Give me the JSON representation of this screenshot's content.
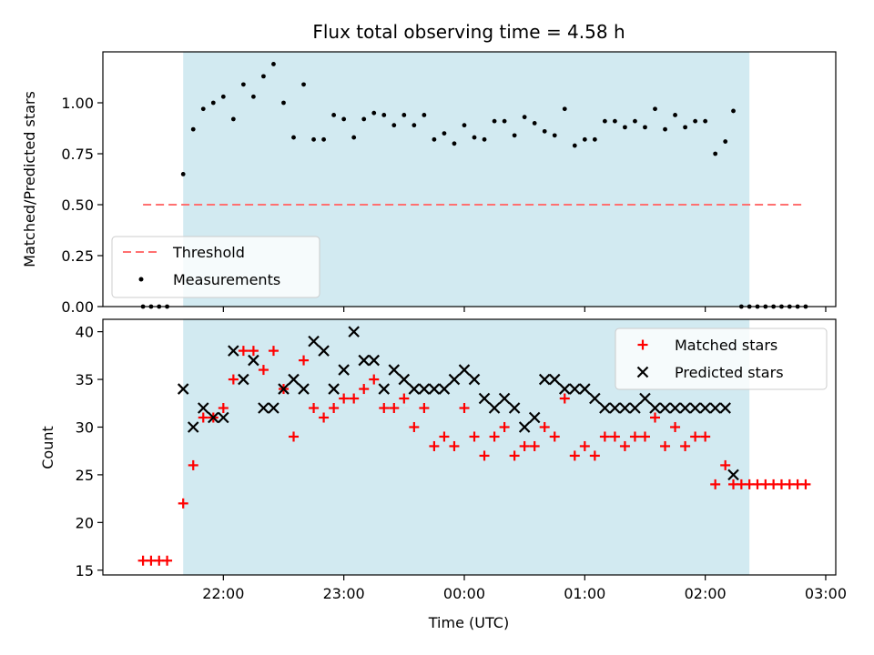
{
  "colors": {
    "shade": "#add8e6",
    "threshold": "#ff7070",
    "measurements": "#000000",
    "matched": "#ff0000",
    "predicted": "#000000"
  },
  "chart_data": [
    {
      "type": "scatter",
      "title": "Flux total observing time = 4.58 h",
      "xlabel": "",
      "ylabel": "Matched/Predicted stars",
      "ylim": [
        0,
        1.25
      ],
      "y_ticks": [
        "0.00",
        "0.25",
        "0.50",
        "0.75",
        "1.00"
      ],
      "y_tick_values": [
        0,
        0.25,
        0.5,
        0.75,
        1.0
      ],
      "legend": {
        "placement": "lower-left",
        "threshold_label": "Threshold",
        "measurements_label": "Measurements"
      },
      "threshold": {
        "value": 0.5,
        "x_range": [
          "21:20",
          "02:50"
        ]
      },
      "shaded_x_range": [
        "21:40",
        "02:22"
      ],
      "x": [
        "21:20",
        "21:24",
        "21:28",
        "21:32",
        "21:40",
        "21:45",
        "21:50",
        "21:55",
        "22:00",
        "22:05",
        "22:10",
        "22:15",
        "22:20",
        "22:25",
        "22:30",
        "22:35",
        "22:40",
        "22:45",
        "22:50",
        "22:55",
        "23:00",
        "23:05",
        "23:10",
        "23:15",
        "23:20",
        "23:25",
        "23:30",
        "23:35",
        "23:40",
        "23:45",
        "23:50",
        "23:55",
        "00:00",
        "00:05",
        "00:10",
        "00:15",
        "00:20",
        "00:25",
        "00:30",
        "00:35",
        "00:40",
        "00:45",
        "00:50",
        "00:55",
        "01:00",
        "01:05",
        "01:10",
        "01:15",
        "01:20",
        "01:25",
        "01:30",
        "01:35",
        "01:40",
        "01:45",
        "01:50",
        "01:55",
        "02:00",
        "02:05",
        "02:10",
        "02:14",
        "02:18",
        "02:22",
        "02:26",
        "02:30",
        "02:34",
        "02:38",
        "02:42",
        "02:46",
        "02:50"
      ],
      "y": [
        0,
        0,
        0,
        0,
        0.65,
        0.87,
        0.97,
        1.0,
        1.03,
        0.92,
        1.09,
        1.03,
        1.13,
        1.19,
        1.0,
        0.83,
        1.09,
        0.82,
        0.82,
        0.94,
        0.92,
        0.83,
        0.92,
        0.95,
        0.94,
        0.89,
        0.94,
        0.89,
        0.94,
        0.82,
        0.85,
        0.8,
        0.89,
        0.83,
        0.82,
        0.91,
        0.91,
        0.84,
        0.93,
        0.9,
        0.86,
        0.84,
        0.97,
        0.79,
        0.82,
        0.82,
        0.91,
        0.91,
        0.88,
        0.91,
        0.88,
        0.97,
        0.87,
        0.94,
        0.88,
        0.91,
        0.91,
        0.75,
        0.81,
        0.96,
        0,
        0,
        0,
        0,
        0,
        0,
        0,
        0,
        0
      ]
    },
    {
      "type": "scatter",
      "title": "",
      "xlabel": "Time (UTC)",
      "ylabel": "Count",
      "ylim": [
        14.5,
        41.3
      ],
      "y_ticks": [
        "15",
        "20",
        "25",
        "30",
        "35",
        "40"
      ],
      "y_tick_values": [
        15,
        20,
        25,
        30,
        35,
        40
      ],
      "x_ticks": [
        "22:00",
        "23:00",
        "00:00",
        "01:00",
        "02:00",
        "03:00"
      ],
      "x_tick_values": [
        "22:00",
        "23:00",
        "00:00",
        "01:00",
        "02:00",
        "03:00"
      ],
      "xlim": [
        "21:00",
        "03:05"
      ],
      "legend": {
        "placement": "top-right",
        "matched_label": "Matched stars",
        "predicted_label": "Predicted stars"
      },
      "shaded_x_range": [
        "21:40",
        "02:22"
      ],
      "series": [
        {
          "name": "Matched stars",
          "marker": "+",
          "x": [
            "21:20",
            "21:24",
            "21:28",
            "21:32",
            "21:40",
            "21:45",
            "21:50",
            "21:55",
            "22:00",
            "22:05",
            "22:10",
            "22:15",
            "22:20",
            "22:25",
            "22:30",
            "22:35",
            "22:40",
            "22:45",
            "22:50",
            "22:55",
            "23:00",
            "23:05",
            "23:10",
            "23:15",
            "23:20",
            "23:25",
            "23:30",
            "23:35",
            "23:40",
            "23:45",
            "23:50",
            "23:55",
            "00:00",
            "00:05",
            "00:10",
            "00:15",
            "00:20",
            "00:25",
            "00:30",
            "00:35",
            "00:40",
            "00:45",
            "00:50",
            "00:55",
            "01:00",
            "01:05",
            "01:10",
            "01:15",
            "01:20",
            "01:25",
            "01:30",
            "01:35",
            "01:40",
            "01:45",
            "01:50",
            "01:55",
            "02:00",
            "02:05",
            "02:10",
            "02:14",
            "02:18",
            "02:22",
            "02:26",
            "02:30",
            "02:34",
            "02:38",
            "02:42",
            "02:46",
            "02:50"
          ],
          "values": [
            16,
            16,
            16,
            16,
            22,
            26,
            31,
            31,
            32,
            35,
            38,
            38,
            36,
            38,
            34,
            29,
            37,
            32,
            31,
            32,
            33,
            33,
            34,
            35,
            32,
            32,
            33,
            30,
            32,
            28,
            29,
            28,
            32,
            29,
            27,
            29,
            30,
            27,
            28,
            28,
            30,
            29,
            33,
            27,
            28,
            27,
            29,
            29,
            28,
            29,
            29,
            31,
            28,
            30,
            28,
            29,
            29,
            24,
            26,
            24,
            24,
            24,
            24,
            24,
            24,
            24,
            24,
            24,
            24
          ]
        },
        {
          "name": "Predicted stars",
          "marker": "x",
          "x": [
            "21:40",
            "21:45",
            "21:50",
            "21:55",
            "22:00",
            "22:05",
            "22:10",
            "22:15",
            "22:20",
            "22:25",
            "22:30",
            "22:35",
            "22:40",
            "22:45",
            "22:50",
            "22:55",
            "23:00",
            "23:05",
            "23:10",
            "23:15",
            "23:20",
            "23:25",
            "23:30",
            "23:35",
            "23:40",
            "23:45",
            "23:50",
            "23:55",
            "00:00",
            "00:05",
            "00:10",
            "00:15",
            "00:20",
            "00:25",
            "00:30",
            "00:35",
            "00:40",
            "00:45",
            "00:50",
            "00:55",
            "01:00",
            "01:05",
            "01:10",
            "01:15",
            "01:20",
            "01:25",
            "01:30",
            "01:35",
            "01:40",
            "01:45",
            "01:50",
            "01:55",
            "02:00",
            "02:05",
            "02:10",
            "02:14"
          ],
          "values": [
            34,
            30,
            32,
            31,
            31,
            38,
            35,
            37,
            32,
            32,
            34,
            35,
            34,
            39,
            38,
            34,
            36,
            40,
            37,
            37,
            34,
            36,
            35,
            34,
            34,
            34,
            34,
            35,
            36,
            35,
            33,
            32,
            33,
            32,
            30,
            31,
            35,
            35,
            34,
            34,
            34,
            33,
            32,
            32,
            32,
            32,
            33,
            32,
            32,
            32,
            32,
            32,
            32,
            32,
            32,
            25
          ]
        }
      ]
    }
  ]
}
